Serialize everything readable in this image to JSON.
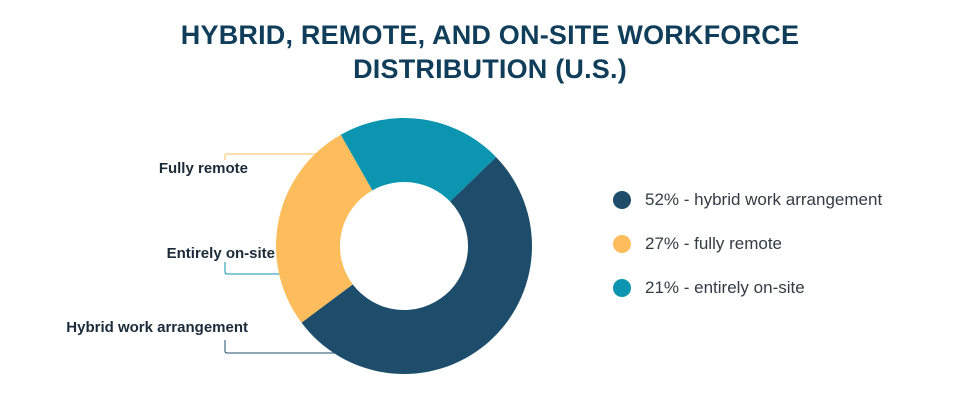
{
  "title": {
    "line1": "HYBRID, REMOTE, AND ON-SITE WORKFORCE",
    "line2": "DISTRIBUTION (U.S.)"
  },
  "callouts": {
    "fully_remote": "Fully remote",
    "entirely_onsite": "Entirely on-site",
    "hybrid": "Hybrid work arrangement"
  },
  "legend": [
    {
      "label": "52% - hybrid work arrangement",
      "color": "#1e4d6b"
    },
    {
      "label": "27% - fully remote",
      "color": "#fdbd5c"
    },
    {
      "label": "21% - entirely on-site",
      "color": "#0b95b0"
    }
  ],
  "chart_data": {
    "type": "pie",
    "variant": "donut",
    "title": "HYBRID, REMOTE, AND ON-SITE WORKFORCE DISTRIBUTION (U.S.)",
    "categories": [
      "Hybrid work arrangement",
      "Fully remote",
      "Entirely on-site"
    ],
    "values": [
      52,
      27,
      21
    ],
    "unit": "%",
    "colors": [
      "#1e4d6b",
      "#fdbd5c",
      "#0b95b0"
    ],
    "legend_position": "right",
    "legend_entries": [
      "52% - hybrid work arrangement",
      "27% - fully remote",
      "21% - entirely on-site"
    ]
  }
}
